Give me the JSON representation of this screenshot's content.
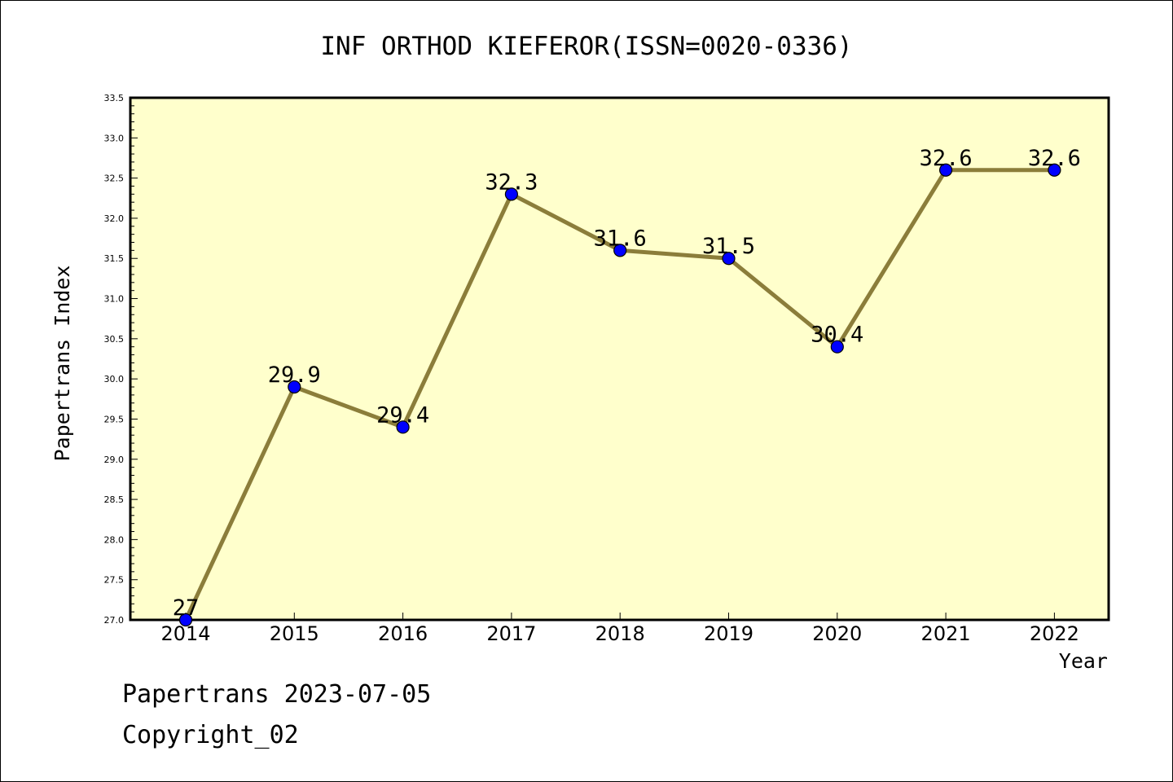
{
  "chart_data": {
    "type": "line",
    "title": "INF ORTHOD KIEFEROR(ISSN=0020-0336)",
    "xlabel": "Year",
    "ylabel": "Papertrans Index",
    "x": [
      "2014",
      "2015",
      "2016",
      "2017",
      "2018",
      "2019",
      "2020",
      "2021",
      "2022"
    ],
    "values": [
      27.0,
      29.9,
      29.4,
      32.3,
      31.6,
      31.5,
      30.4,
      32.6,
      32.6
    ],
    "data_labels": [
      "27",
      "29.9",
      "29.4",
      "32.3",
      "31.6",
      "31.5",
      "30.4",
      "32.6",
      "32.6"
    ],
    "ylim": [
      27.0,
      33.5
    ],
    "yticks": [
      "27.0",
      "27.5",
      "28.0",
      "28.5",
      "29.0",
      "29.5",
      "30.0",
      "30.5",
      "31.0",
      "31.5",
      "32.0",
      "32.5",
      "33.0",
      "33.5"
    ],
    "grid": false,
    "colors": {
      "plot_background": "#ffffcc",
      "line": "#8b7d3a",
      "marker": "#0000ff"
    }
  },
  "footer": {
    "line1": "Papertrans 2023-07-05",
    "line2": "Copyright_02"
  }
}
